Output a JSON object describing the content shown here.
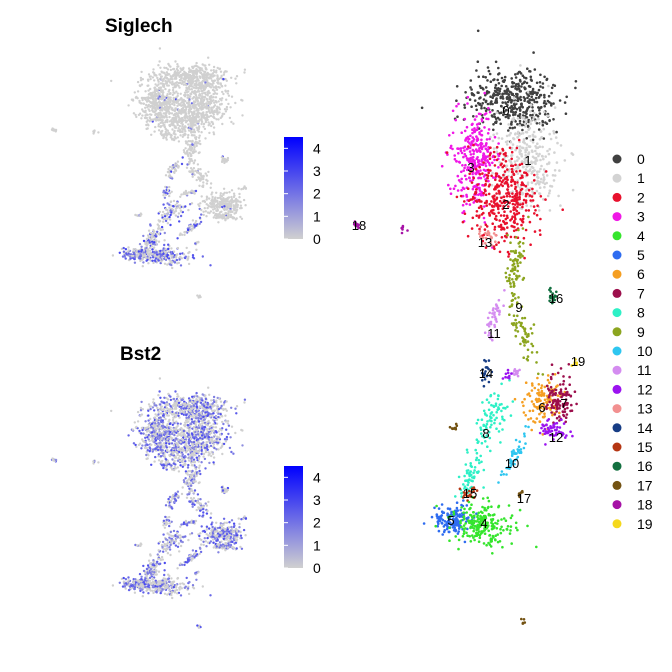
{
  "chart_data": [
    {
      "type": "scatter",
      "title": "Siglech",
      "color_scale": {
        "low": "#d0d0d0",
        "high": "#0000ff",
        "ticks": [
          0,
          1,
          2,
          3,
          4
        ],
        "range": [
          0,
          4.5
        ]
      }
    },
    {
      "type": "scatter",
      "title": "Bst2",
      "color_scale": {
        "low": "#d0d0d0",
        "high": "#0000ff",
        "ticks": [
          0,
          1,
          2,
          3,
          4
        ],
        "range": [
          0,
          4.5
        ]
      }
    },
    {
      "type": "scatter",
      "title": "",
      "legend_position": "right",
      "clusters": [
        {
          "label": "0",
          "color": "#404040"
        },
        {
          "label": "1",
          "color": "#d3d3d3"
        },
        {
          "label": "2",
          "color": "#e8112d"
        },
        {
          "label": "3",
          "color": "#f018e6"
        },
        {
          "label": "4",
          "color": "#35e52d"
        },
        {
          "label": "5",
          "color": "#2e6cf0"
        },
        {
          "label": "6",
          "color": "#f59e21"
        },
        {
          "label": "7",
          "color": "#9c0f4c"
        },
        {
          "label": "8",
          "color": "#2ef0c6"
        },
        {
          "label": "9",
          "color": "#8ca51f"
        },
        {
          "label": "10",
          "color": "#2ec6f0"
        },
        {
          "label": "11",
          "color": "#d48cf0"
        },
        {
          "label": "12",
          "color": "#9b13f0"
        },
        {
          "label": "13",
          "color": "#f29090"
        },
        {
          "label": "14",
          "color": "#173d85"
        },
        {
          "label": "15",
          "color": "#b53613"
        },
        {
          "label": "16",
          "color": "#137040"
        },
        {
          "label": "17",
          "color": "#735212"
        },
        {
          "label": "18",
          "color": "#a612a6"
        },
        {
          "label": "19",
          "color": "#f5d81c"
        }
      ]
    }
  ]
}
